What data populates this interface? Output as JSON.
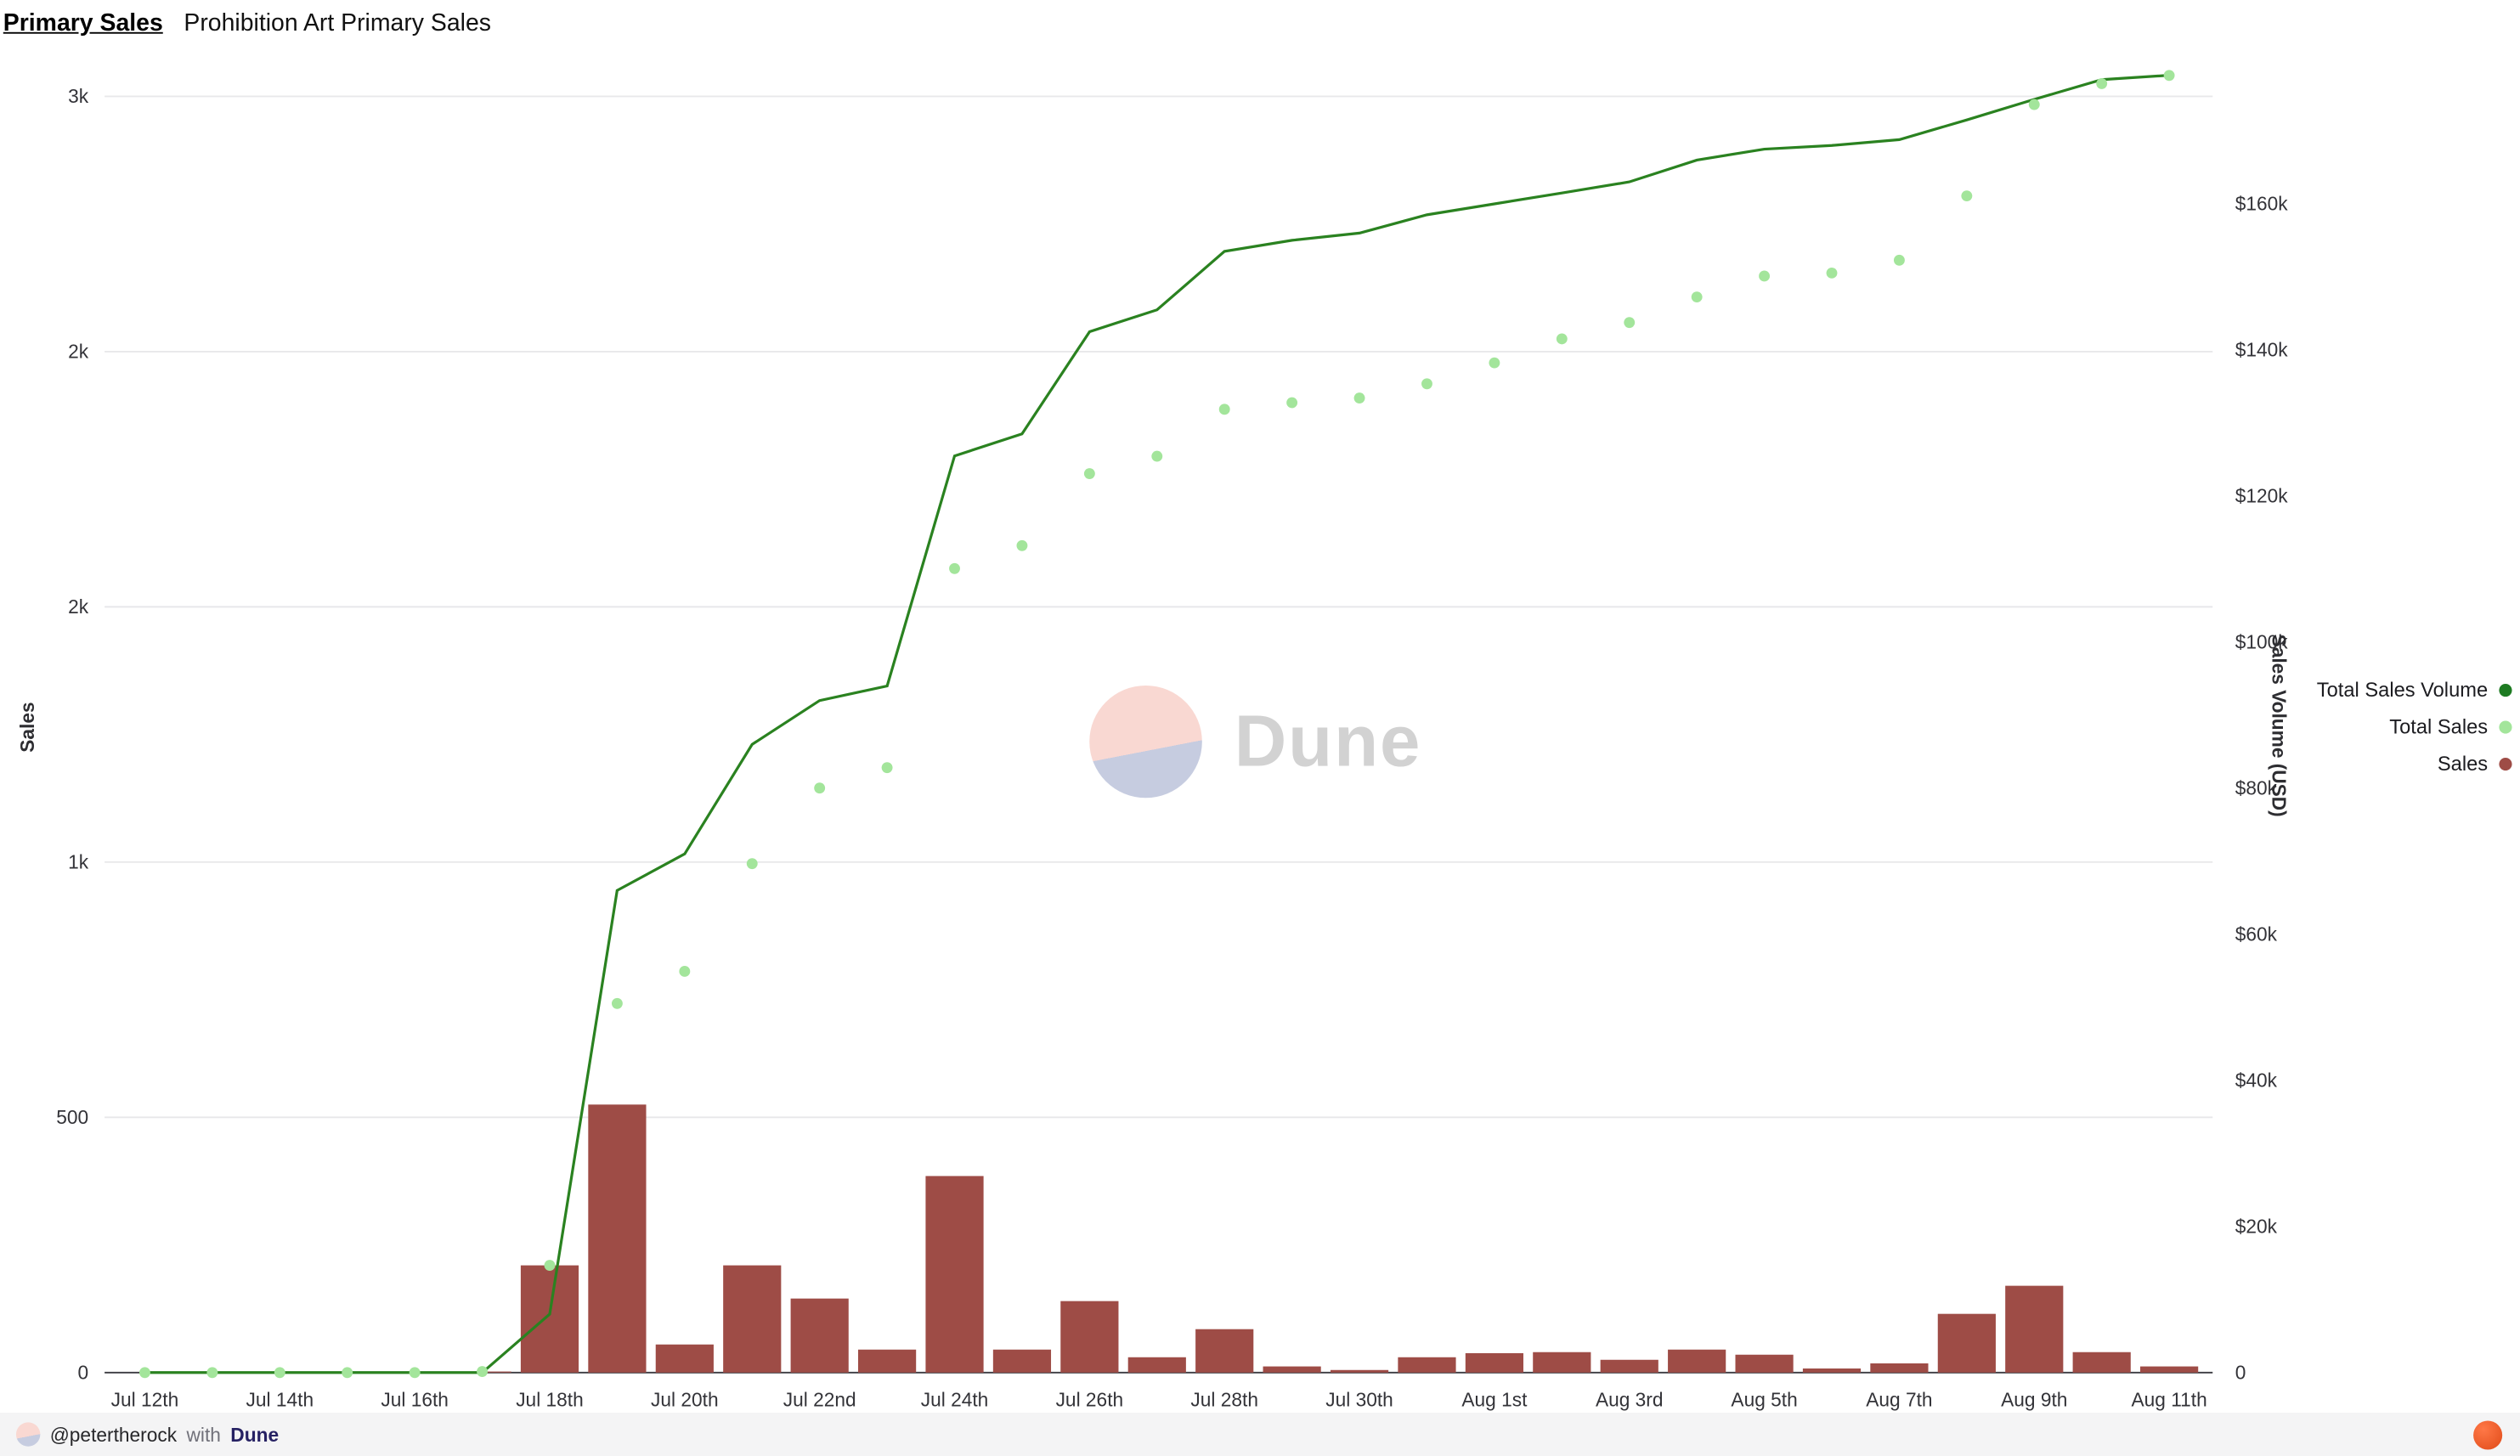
{
  "header": {
    "query_title": "Primary Sales",
    "chart_title": "Prohibition Art Primary Sales"
  },
  "watermark": {
    "text": "Dune"
  },
  "footer": {
    "author": "@petertherock",
    "with_text": "with",
    "dune_label": "Dune"
  },
  "legend": [
    {
      "label": "Total Sales Volume",
      "color": "#1e7b22"
    },
    {
      "label": "Total Sales",
      "color": "#a3e59b"
    },
    {
      "label": "Sales",
      "color": "#9e4c46"
    }
  ],
  "chart_data": {
    "type": "mixed",
    "title": "Prohibition Art Primary Sales",
    "grid": true,
    "legend_position": "right",
    "x_dates": [
      "Jul 12",
      "Jul 13",
      "Jul 14",
      "Jul 15",
      "Jul 16",
      "Jul 17",
      "Jul 18",
      "Jul 19",
      "Jul 20",
      "Jul 21",
      "Jul 22",
      "Jul 23",
      "Jul 24",
      "Jul 25",
      "Jul 26",
      "Jul 27",
      "Jul 28",
      "Jul 29",
      "Jul 30",
      "Jul 31",
      "Aug 1",
      "Aug 2",
      "Aug 3",
      "Aug 4",
      "Aug 5",
      "Aug 6",
      "Aug 7",
      "Aug 8",
      "Aug 9",
      "Aug 10",
      "Aug 11"
    ],
    "x_tick_labels": [
      "Jul 12th",
      "Jul 14th",
      "Jul 16th",
      "Jul 18th",
      "Jul 20th",
      "Jul 22nd",
      "Jul 24th",
      "Jul 26th",
      "Jul 28th",
      "Jul 30th",
      "Aug 1st",
      "Aug 3rd",
      "Aug 5th",
      "Aug 7th",
      "Aug 9th",
      "Aug 11th"
    ],
    "left_axis": {
      "label": "Sales",
      "range": [
        0,
        2563
      ],
      "ticks": [
        {
          "value": 0,
          "label": "0"
        },
        {
          "value": 500,
          "label": "500"
        },
        {
          "value": 1000,
          "label": "1k"
        },
        {
          "value": 1500,
          "label": "2k"
        },
        {
          "value": 2000,
          "label": "2k"
        },
        {
          "value": 2500,
          "label": "3k"
        }
      ]
    },
    "right_axis": {
      "label": "Sales Volume (USD)",
      "range": [
        0,
        179120
      ],
      "ticks": [
        {
          "value": 0,
          "label": "0"
        },
        {
          "value": 20000,
          "label": "$20k"
        },
        {
          "value": 40000,
          "label": "$40k"
        },
        {
          "value": 60000,
          "label": "$60k"
        },
        {
          "value": 80000,
          "label": "$80k"
        },
        {
          "value": 100000,
          "label": "$100k"
        },
        {
          "value": 120000,
          "label": "$120k"
        },
        {
          "value": 140000,
          "label": "$140k"
        },
        {
          "value": 160000,
          "label": "$160k"
        }
      ]
    },
    "series": [
      {
        "name": "Total Sales Volume",
        "type": "line",
        "axis": "right",
        "color": "#2a8220",
        "values": [
          0,
          0,
          0,
          0,
          0,
          0,
          8000,
          66000,
          71000,
          86000,
          92000,
          94000,
          125500,
          128500,
          142500,
          145500,
          153500,
          155000,
          156000,
          158500,
          160000,
          161500,
          163000,
          166000,
          167500,
          168000,
          168800,
          171500,
          174300,
          177000,
          177600
        ]
      },
      {
        "name": "Total Sales",
        "type": "scatter",
        "axis": "left",
        "color": "#a3e59b",
        "values": [
          0,
          0,
          0,
          0,
          0,
          2,
          210,
          723,
          786,
          997,
          1145,
          1185,
          1575,
          1620,
          1761,
          1795,
          1887,
          1900,
          1909,
          1937,
          1978,
          2025,
          2057,
          2107,
          2148,
          2154,
          2179,
          2305,
          2484,
          2525,
          2541
        ]
      },
      {
        "name": "Sales",
        "type": "bar",
        "axis": "left",
        "color": "#9e4c46",
        "values": [
          0,
          0,
          0,
          0,
          0,
          2,
          210,
          525,
          55,
          210,
          145,
          45,
          385,
          45,
          140,
          30,
          85,
          12,
          5,
          30,
          38,
          40,
          25,
          45,
          35,
          8,
          18,
          115,
          170,
          40,
          12
        ]
      }
    ]
  }
}
